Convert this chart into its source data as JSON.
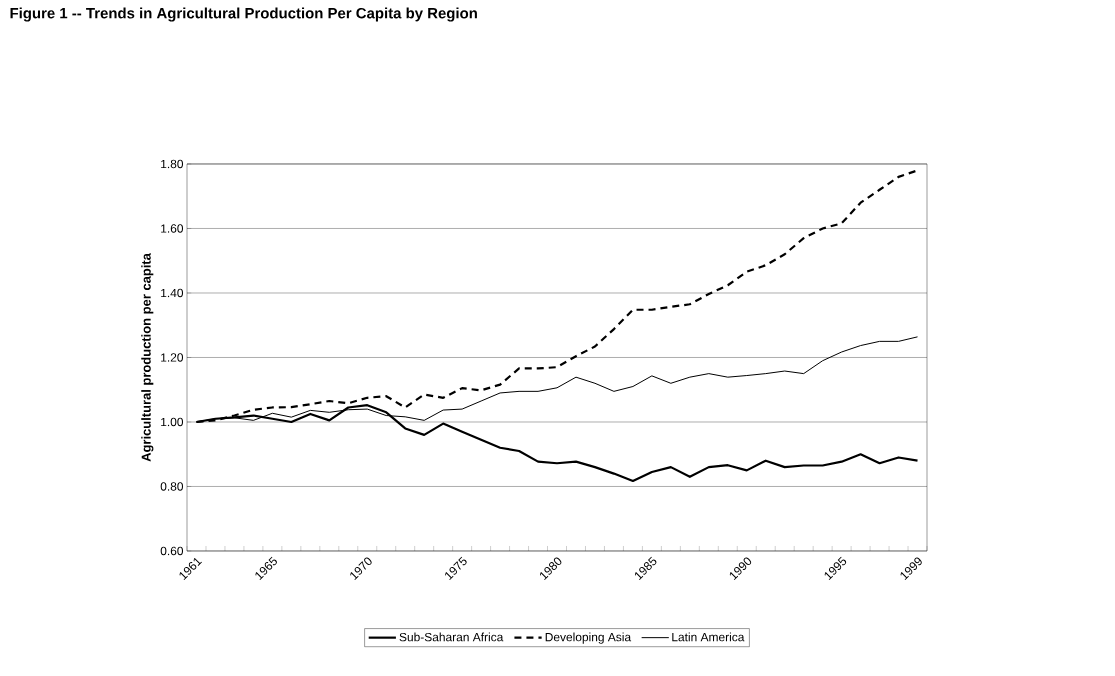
{
  "chart_data": {
    "type": "line",
    "title": "Figure 1 -- Trends in Agricultural Production Per Capita by Region",
    "ylabel": "Agricultural production per capita",
    "categories": [
      "1961",
      null,
      null,
      null,
      "1965",
      null,
      null,
      null,
      null,
      "1970",
      null,
      null,
      null,
      null,
      "1975",
      null,
      null,
      null,
      null,
      "1980",
      null,
      null,
      null,
      null,
      "1985",
      null,
      null,
      null,
      null,
      "1990",
      null,
      null,
      null,
      null,
      "1995",
      null,
      null,
      null,
      "1999"
    ],
    "series": [
      {
        "name": "Sub-Saharan Africa",
        "color": "#000000",
        "line_style": "solid",
        "values": [
          1.0,
          1.01,
          1.014,
          1.02,
          1.01,
          1.0,
          1.025,
          1.005,
          1.045,
          1.052,
          1.03,
          0.98,
          0.96,
          0.995,
          0.97,
          0.945,
          0.92,
          0.91,
          0.877,
          0.872,
          0.877,
          0.86,
          0.84,
          0.817,
          0.845,
          0.86,
          0.83,
          0.86,
          0.866,
          0.85,
          0.88,
          0.86,
          0.865,
          0.865,
          0.877,
          0.9,
          0.872,
          0.89,
          0.88
        ]
      },
      {
        "name": "Developing Asia",
        "color": "#000000",
        "line_style": "dashed",
        "values": [
          1.0,
          1.005,
          1.02,
          1.038,
          1.045,
          1.046,
          1.055,
          1.065,
          1.058,
          1.075,
          1.08,
          1.045,
          1.085,
          1.075,
          1.105,
          1.098,
          1.116,
          1.166,
          1.166,
          1.17,
          1.204,
          1.234,
          1.288,
          1.348,
          1.348,
          1.357,
          1.365,
          1.397,
          1.424,
          1.466,
          1.486,
          1.52,
          1.57,
          1.6,
          1.616,
          1.68,
          1.72,
          1.76,
          1.78
        ]
      },
      {
        "name": "Latin America",
        "color": "#000000",
        "line_style": "solid",
        "values": [
          1.0,
          1.01,
          1.013,
          1.005,
          1.027,
          1.015,
          1.036,
          1.03,
          1.038,
          1.04,
          1.02,
          1.016,
          1.005,
          1.037,
          1.04,
          1.065,
          1.09,
          1.095,
          1.095,
          1.106,
          1.139,
          1.12,
          1.095,
          1.11,
          1.143,
          1.12,
          1.139,
          1.15,
          1.139,
          1.144,
          1.15,
          1.158,
          1.15,
          1.19,
          1.217,
          1.237,
          1.25,
          1.25,
          1.264
        ]
      }
    ],
    "ylim": [
      0.6,
      1.8
    ],
    "yticks": [
      {
        "value": 0.6,
        "label": "0.60"
      },
      {
        "value": 0.8,
        "label": "0.80"
      },
      {
        "value": 1.0,
        "label": "1.00"
      },
      {
        "value": 1.2,
        "label": "1.20"
      },
      {
        "value": 1.4,
        "label": "1.40"
      },
      {
        "value": 1.6,
        "label": "1.60"
      },
      {
        "value": 1.8,
        "label": "1.80"
      }
    ],
    "grid": "y",
    "legend": "bottom"
  }
}
